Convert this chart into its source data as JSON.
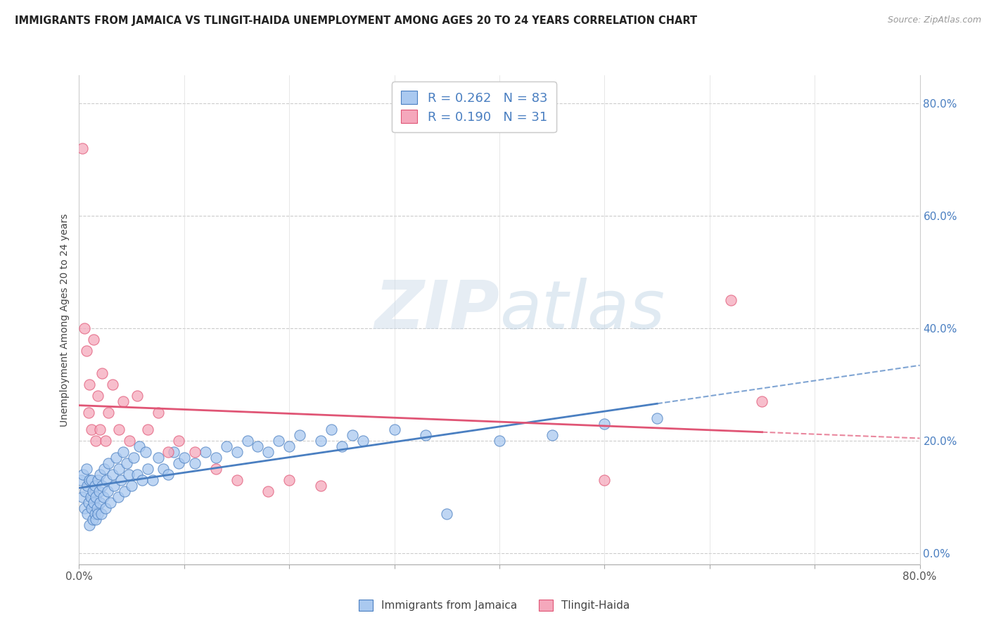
{
  "title": "IMMIGRANTS FROM JAMAICA VS TLINGIT-HAIDA UNEMPLOYMENT AMONG AGES 20 TO 24 YEARS CORRELATION CHART",
  "source": "Source: ZipAtlas.com",
  "ylabel": "Unemployment Among Ages 20 to 24 years",
  "legend_label1": "Immigrants from Jamaica",
  "legend_label2": "Tlingit-Haida",
  "r1": 0.262,
  "n1": 83,
  "r2": 0.19,
  "n2": 31,
  "color1": "#aac9f0",
  "color2": "#f5a8bc",
  "line_color1": "#4a7fc1",
  "line_color2": "#e05575",
  "xlim": [
    0.0,
    0.8
  ],
  "ylim": [
    -0.02,
    0.85
  ],
  "right_yticks": [
    0.0,
    0.2,
    0.4,
    0.6,
    0.8
  ],
  "right_yticklabels": [
    "0.0%",
    "20.0%",
    "40.0%",
    "60.0%",
    "80.0%"
  ],
  "scatter1_x": [
    0.002,
    0.003,
    0.004,
    0.005,
    0.006,
    0.007,
    0.008,
    0.008,
    0.009,
    0.01,
    0.01,
    0.011,
    0.012,
    0.012,
    0.013,
    0.013,
    0.014,
    0.015,
    0.015,
    0.016,
    0.016,
    0.017,
    0.018,
    0.018,
    0.019,
    0.02,
    0.02,
    0.021,
    0.022,
    0.023,
    0.024,
    0.025,
    0.026,
    0.027,
    0.028,
    0.03,
    0.032,
    0.033,
    0.035,
    0.037,
    0.038,
    0.04,
    0.042,
    0.043,
    0.045,
    0.047,
    0.05,
    0.052,
    0.055,
    0.057,
    0.06,
    0.063,
    0.065,
    0.07,
    0.075,
    0.08,
    0.085,
    0.09,
    0.095,
    0.1,
    0.11,
    0.12,
    0.13,
    0.14,
    0.15,
    0.16,
    0.17,
    0.18,
    0.19,
    0.2,
    0.21,
    0.23,
    0.24,
    0.25,
    0.26,
    0.27,
    0.3,
    0.33,
    0.35,
    0.4,
    0.45,
    0.5,
    0.55
  ],
  "scatter1_y": [
    0.13,
    0.1,
    0.14,
    0.08,
    0.11,
    0.15,
    0.07,
    0.12,
    0.09,
    0.13,
    0.05,
    0.1,
    0.08,
    0.13,
    0.06,
    0.11,
    0.09,
    0.07,
    0.12,
    0.06,
    0.1,
    0.08,
    0.13,
    0.07,
    0.11,
    0.09,
    0.14,
    0.07,
    0.12,
    0.1,
    0.15,
    0.08,
    0.13,
    0.11,
    0.16,
    0.09,
    0.14,
    0.12,
    0.17,
    0.1,
    0.15,
    0.13,
    0.18,
    0.11,
    0.16,
    0.14,
    0.12,
    0.17,
    0.14,
    0.19,
    0.13,
    0.18,
    0.15,
    0.13,
    0.17,
    0.15,
    0.14,
    0.18,
    0.16,
    0.17,
    0.16,
    0.18,
    0.17,
    0.19,
    0.18,
    0.2,
    0.19,
    0.18,
    0.2,
    0.19,
    0.21,
    0.2,
    0.22,
    0.19,
    0.21,
    0.2,
    0.22,
    0.21,
    0.07,
    0.2,
    0.21,
    0.23,
    0.24
  ],
  "scatter2_x": [
    0.003,
    0.005,
    0.007,
    0.009,
    0.01,
    0.012,
    0.014,
    0.016,
    0.018,
    0.02,
    0.022,
    0.025,
    0.028,
    0.032,
    0.038,
    0.042,
    0.048,
    0.055,
    0.065,
    0.075,
    0.085,
    0.095,
    0.11,
    0.13,
    0.15,
    0.18,
    0.2,
    0.23,
    0.5,
    0.62,
    0.65
  ],
  "scatter2_y": [
    0.72,
    0.4,
    0.36,
    0.25,
    0.3,
    0.22,
    0.38,
    0.2,
    0.28,
    0.22,
    0.32,
    0.2,
    0.25,
    0.3,
    0.22,
    0.27,
    0.2,
    0.28,
    0.22,
    0.25,
    0.18,
    0.2,
    0.18,
    0.15,
    0.13,
    0.11,
    0.13,
    0.12,
    0.13,
    0.45,
    0.27
  ]
}
